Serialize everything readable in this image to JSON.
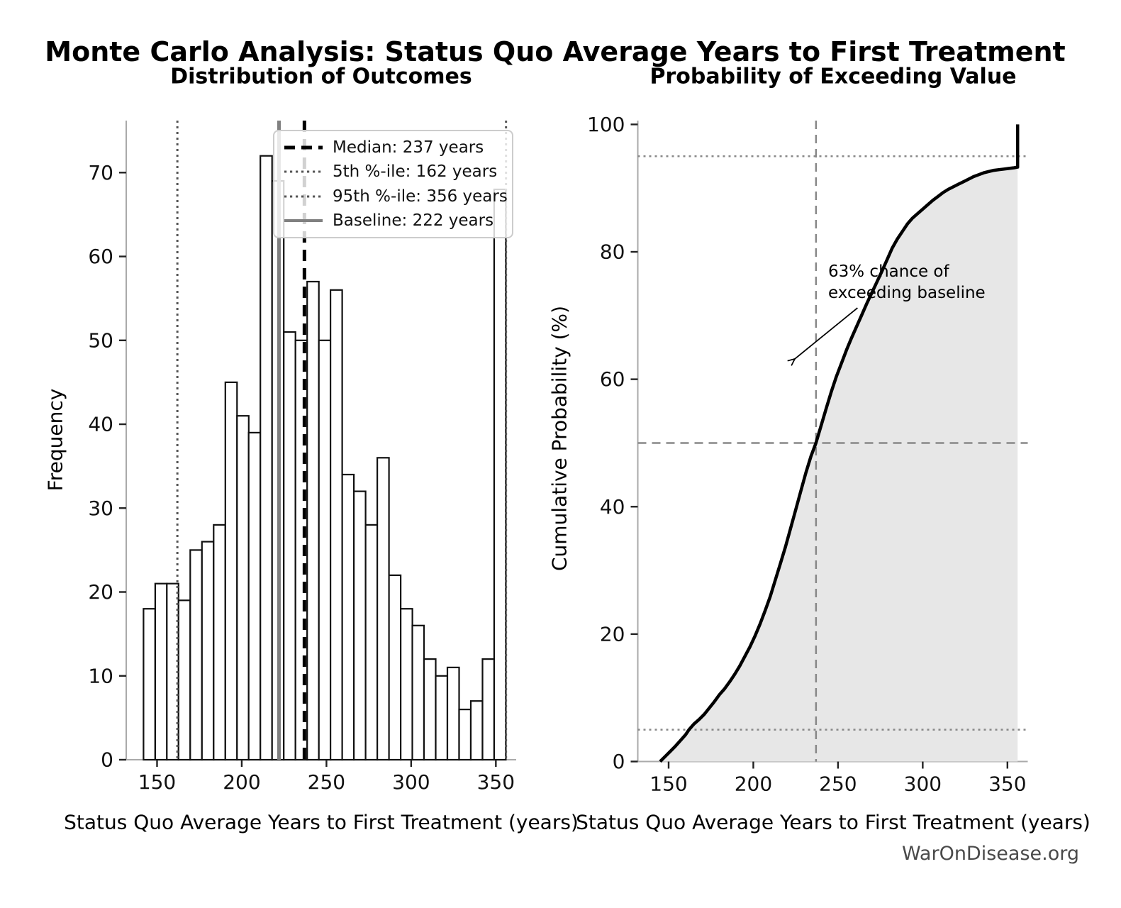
{
  "figure": {
    "title": "Monte Carlo Analysis: Status Quo Average Years to First Treatment",
    "footer": "WarOnDisease.org"
  },
  "left_plot": {
    "title": "Distribution of Outcomes",
    "xlabel": "Status Quo Average Years to First Treatment (years)",
    "ylabel": "Frequency"
  },
  "right_plot": {
    "title": "Probability of Exceeding Value",
    "xlabel": "Status Quo Average Years to First Treatment (years)",
    "ylabel": "Cumulative Probability (%)",
    "annotation_line1": "63% chance of",
    "annotation_line2": "exceeding baseline"
  },
  "legend": {
    "items": [
      {
        "label": "Median: 237 years",
        "style": "dashed-black"
      },
      {
        "label": "5th %-ile: 162 years",
        "style": "dotted-gray"
      },
      {
        "label": "95th %-ile: 356 years",
        "style": "dotted-gray"
      },
      {
        "label": "Baseline: 222 years",
        "style": "solid-gray"
      }
    ]
  },
  "colors": {
    "median_line": "#000000",
    "percentile_line": "#555555",
    "baseline_line": "#808080",
    "guide_line": "#888888",
    "curve": "#000000",
    "area_fill": "#e7e7e7",
    "bar_fill": "#ffffff",
    "bar_edge": "#111111",
    "spine": "#aaaaaa",
    "tick": "#222222",
    "tick_label": "#111111",
    "footer_text": "#4a4a4a"
  },
  "chart_data": [
    {
      "type": "bar",
      "subtype": "histogram",
      "title": "Distribution of Outcomes",
      "xlabel": "Status Quo Average Years to First Treatment (years)",
      "ylabel": "Frequency",
      "bin_start": 142,
      "bin_width": 6.9,
      "counts": [
        18,
        21,
        21,
        19,
        25,
        26,
        28,
        45,
        41,
        39,
        72,
        69,
        51,
        50,
        57,
        50,
        56,
        34,
        32,
        28,
        36,
        22,
        18,
        16,
        12,
        10,
        11,
        6,
        7,
        12,
        68
      ],
      "x_ticks": [
        150,
        200,
        250,
        300,
        350
      ],
      "y_ticks": [
        0,
        10,
        20,
        30,
        40,
        50,
        60,
        70
      ],
      "xlim": [
        131.8,
        362
      ],
      "ylim": [
        0,
        76.2
      ],
      "grid": false,
      "legend_position": "upper right",
      "vlines": [
        {
          "name": "percentile-5-line",
          "x": 162,
          "style": "dotted",
          "color": "#555555",
          "width": 3,
          "label": "5th %-ile: 162 years"
        },
        {
          "name": "baseline-line",
          "x": 222,
          "style": "solid",
          "color": "#808080",
          "width": 5,
          "label": "Baseline: 222 years"
        },
        {
          "name": "median-line",
          "x": 237,
          "style": "dashed",
          "color": "#000000",
          "width": 5,
          "label": "Median: 237 years"
        },
        {
          "name": "percentile-95-line",
          "x": 356,
          "style": "dotted",
          "color": "#555555",
          "width": 3,
          "label": "95th %-ile: 356 years"
        }
      ]
    },
    {
      "type": "line",
      "subtype": "cdf",
      "title": "Probability of Exceeding Value",
      "xlabel": "Status Quo Average Years to First Treatment (years)",
      "ylabel": "Cumulative Probability (%)",
      "x_ticks": [
        150,
        200,
        250,
        300,
        350
      ],
      "y_ticks": [
        0,
        20,
        40,
        60,
        80,
        100
      ],
      "xlim": [
        131.8,
        362
      ],
      "ylim": [
        0,
        100.6
      ],
      "grid": false,
      "area_under_curve": true,
      "points": [
        [
          145,
          0.0
        ],
        [
          148,
          0.8
        ],
        [
          151,
          1.6
        ],
        [
          154,
          2.4
        ],
        [
          157,
          3.3
        ],
        [
          160,
          4.2
        ],
        [
          162,
          5.0
        ],
        [
          165,
          5.9
        ],
        [
          168,
          6.6
        ],
        [
          171,
          7.4
        ],
        [
          174,
          8.4
        ],
        [
          177,
          9.4
        ],
        [
          180,
          10.5
        ],
        [
          183,
          11.4
        ],
        [
          186,
          12.5
        ],
        [
          189,
          13.7
        ],
        [
          192,
          15.0
        ],
        [
          195,
          16.5
        ],
        [
          198,
          18.0
        ],
        [
          201,
          19.7
        ],
        [
          204,
          21.6
        ],
        [
          207,
          23.7
        ],
        [
          210,
          25.9
        ],
        [
          213,
          28.5
        ],
        [
          216,
          31.1
        ],
        [
          219,
          33.7
        ],
        [
          222,
          36.6
        ],
        [
          225,
          39.5
        ],
        [
          228,
          42.4
        ],
        [
          231,
          45.3
        ],
        [
          234,
          47.9
        ],
        [
          237,
          50.0
        ],
        [
          240,
          52.7
        ],
        [
          243,
          55.4
        ],
        [
          246,
          58.0
        ],
        [
          249,
          60.4
        ],
        [
          252,
          62.5
        ],
        [
          255,
          64.6
        ],
        [
          258,
          66.5
        ],
        [
          261,
          68.3
        ],
        [
          264,
          70.1
        ],
        [
          267,
          71.9
        ],
        [
          270,
          73.6
        ],
        [
          273,
          75.3
        ],
        [
          276,
          77.0
        ],
        [
          279,
          78.8
        ],
        [
          282,
          80.6
        ],
        [
          285,
          82.0
        ],
        [
          288,
          83.2
        ],
        [
          291,
          84.4
        ],
        [
          294,
          85.3
        ],
        [
          297,
          86.0
        ],
        [
          300,
          86.7
        ],
        [
          303,
          87.4
        ],
        [
          306,
          88.1
        ],
        [
          309,
          88.7
        ],
        [
          312,
          89.3
        ],
        [
          315,
          89.8
        ],
        [
          318,
          90.2
        ],
        [
          321,
          90.6
        ],
        [
          324,
          91.0
        ],
        [
          327,
          91.4
        ],
        [
          330,
          91.8
        ],
        [
          333,
          92.1
        ],
        [
          336,
          92.4
        ],
        [
          339,
          92.6
        ],
        [
          342,
          92.8
        ],
        [
          345,
          92.9
        ],
        [
          348,
          93.0
        ],
        [
          351,
          93.1
        ],
        [
          354,
          93.2
        ],
        [
          356,
          93.3
        ]
      ],
      "end_jump": {
        "x": 356,
        "from": 93.3,
        "to": 100
      },
      "guides": {
        "dotted_horizontal": [
          5,
          95
        ],
        "dashed_horizontal": [
          50
        ],
        "dashed_vertical": [
          237
        ]
      },
      "annotation": {
        "text_line1": "63% chance of",
        "text_line2": "exceeding baseline",
        "arrow_from": [
          261.5,
          71.2
        ],
        "arrow_to": [
          224.5,
          63.2
        ]
      }
    }
  ]
}
